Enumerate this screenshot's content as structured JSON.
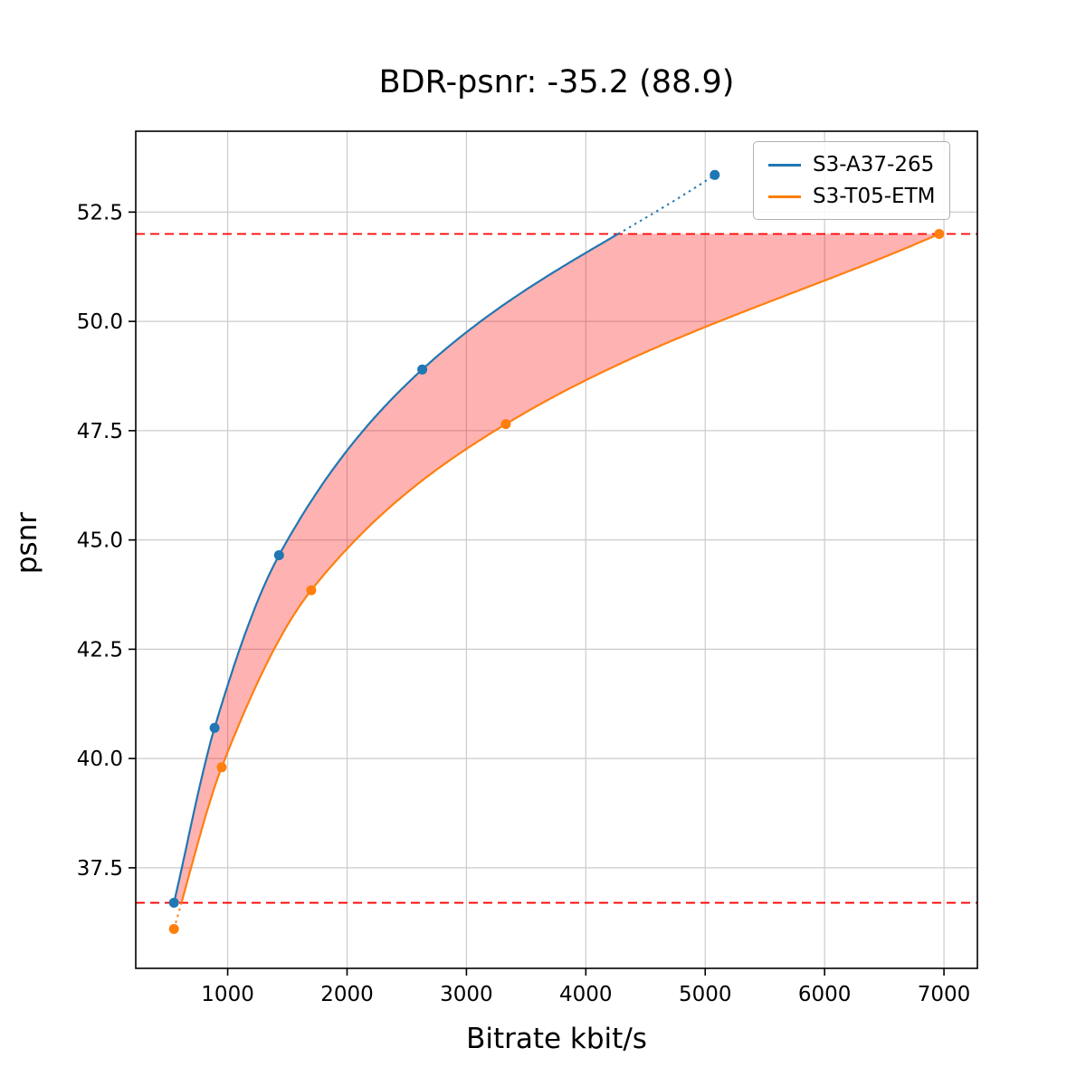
{
  "title": "BDR-psnr: -35.2 (88.9)",
  "chart_data": {
    "type": "line",
    "title": "BDR-psnr: -35.2 (88.9)",
    "xlabel": "Bitrate kbit/s",
    "ylabel": "psnr",
    "xlim": [
      230,
      7280
    ],
    "ylim": [
      35.2,
      54.35
    ],
    "x_ticks": [
      1000,
      2000,
      3000,
      4000,
      5000,
      6000,
      7000
    ],
    "y_ticks": [
      37.5,
      40.0,
      42.5,
      45.0,
      47.5,
      50.0,
      52.5
    ],
    "grid": true,
    "grid_color": "#cccccc",
    "legend_position": "upper right",
    "series": [
      {
        "name": "S3-A37-265",
        "color": "#1f77b4",
        "x": [
          550,
          890,
          1430,
          2630,
          5080
        ],
        "y": [
          36.7,
          40.7,
          44.65,
          48.9,
          53.35
        ],
        "segment_style": "solid within overlap, dotted above psnr 52.0"
      },
      {
        "name": "S3-T05-ETM",
        "color": "#ff7f0e",
        "x": [
          550,
          950,
          1700,
          3330,
          6960
        ],
        "y": [
          36.1,
          39.8,
          43.85,
          47.65,
          52.0
        ],
        "segment_style": "solid within overlap, dotted below psnr 36.7"
      }
    ],
    "hlines": {
      "values": [
        52.0,
        36.7
      ],
      "color": "#ff0000",
      "style": "dashed"
    },
    "fill_between": {
      "color": "#ff0000",
      "alpha": 0.3,
      "description": "BD-rate integration area between the two curves, clipped to psnr range [36.7, 52.0]"
    }
  }
}
